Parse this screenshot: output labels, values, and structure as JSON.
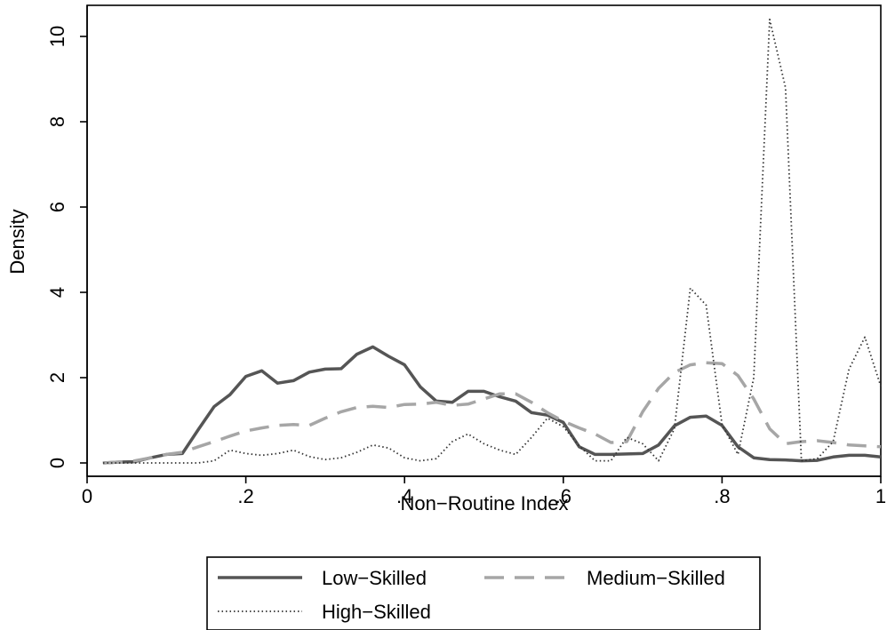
{
  "chart_data": {
    "type": "line",
    "xlabel": "Non−Routine Index",
    "ylabel": "Density",
    "xlim": [
      0,
      1
    ],
    "ylim": [
      0,
      10.5
    ],
    "xticks": [
      0,
      0.2,
      0.4,
      0.6,
      0.8,
      1
    ],
    "xtick_labels": [
      "0",
      ".2",
      ".4",
      ".6",
      ".8",
      "1"
    ],
    "yticks": [
      0,
      2,
      4,
      6,
      8,
      10
    ],
    "ytick_labels": [
      "0",
      "2",
      "4",
      "6",
      "8",
      "10"
    ],
    "grid": false,
    "legend_position": "bottom",
    "x": [
      0.02,
      0.04,
      0.06,
      0.08,
      0.1,
      0.12,
      0.14,
      0.16,
      0.18,
      0.2,
      0.22,
      0.24,
      0.26,
      0.28,
      0.3,
      0.32,
      0.34,
      0.36,
      0.38,
      0.4,
      0.42,
      0.44,
      0.46,
      0.48,
      0.5,
      0.52,
      0.54,
      0.56,
      0.58,
      0.6,
      0.62,
      0.64,
      0.66,
      0.68,
      0.7,
      0.72,
      0.74,
      0.76,
      0.78,
      0.8,
      0.82,
      0.84,
      0.86,
      0.88,
      0.9,
      0.92,
      0.94,
      0.96,
      0.98,
      1.0
    ],
    "series": [
      {
        "name": "Low−Skilled",
        "color": "#555555",
        "dash": "solid",
        "values": [
          0.0,
          0.02,
          0.03,
          0.12,
          0.2,
          0.22,
          0.78,
          1.32,
          1.6,
          2.03,
          2.16,
          1.87,
          1.93,
          2.13,
          2.2,
          2.21,
          2.55,
          2.72,
          2.5,
          2.3,
          1.78,
          1.45,
          1.42,
          1.68,
          1.68,
          1.55,
          1.45,
          1.18,
          1.12,
          0.95,
          0.38,
          0.2,
          0.2,
          0.21,
          0.22,
          0.42,
          0.87,
          1.07,
          1.1,
          0.88,
          0.38,
          0.12,
          0.08,
          0.07,
          0.05,
          0.06,
          0.14,
          0.18,
          0.18,
          0.14
        ]
      },
      {
        "name": "Medium−Skilled",
        "color": "#a6a6a6",
        "dash": "dashed",
        "values": [
          0.0,
          0.02,
          0.05,
          0.12,
          0.2,
          0.25,
          0.38,
          0.5,
          0.63,
          0.75,
          0.82,
          0.88,
          0.9,
          0.88,
          1.05,
          1.2,
          1.3,
          1.33,
          1.3,
          1.37,
          1.38,
          1.42,
          1.35,
          1.38,
          1.5,
          1.62,
          1.62,
          1.42,
          1.18,
          0.98,
          0.82,
          0.68,
          0.48,
          0.5,
          1.2,
          1.75,
          2.12,
          2.3,
          2.35,
          2.33,
          2.05,
          1.5,
          0.8,
          0.45,
          0.5,
          0.52,
          0.48,
          0.42,
          0.4,
          0.38
        ]
      },
      {
        "name": "High−Skilled",
        "color": "#333333",
        "dash": "dotted",
        "values": [
          0.0,
          0.0,
          0.0,
          0.0,
          0.0,
          0.0,
          0.0,
          0.05,
          0.3,
          0.22,
          0.18,
          0.22,
          0.3,
          0.15,
          0.08,
          0.12,
          0.25,
          0.42,
          0.35,
          0.12,
          0.05,
          0.1,
          0.5,
          0.68,
          0.45,
          0.3,
          0.2,
          0.6,
          1.05,
          0.85,
          0.4,
          0.05,
          0.05,
          0.6,
          0.45,
          0.05,
          0.8,
          4.1,
          3.7,
          0.9,
          0.2,
          2.0,
          10.4,
          8.8,
          0.05,
          0.1,
          0.5,
          2.2,
          2.95,
          1.8
        ]
      }
    ]
  }
}
